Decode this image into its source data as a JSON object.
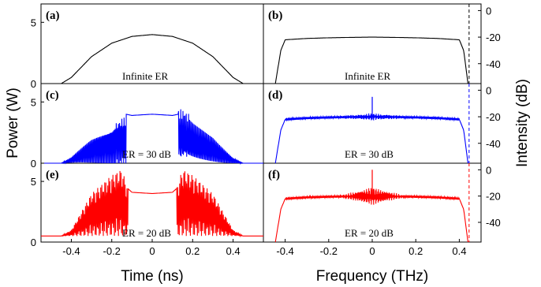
{
  "figure": {
    "xlabel_left": "Time (ns)",
    "xlabel_right": "Frequency (THz)",
    "ylabel_left": "Power (W)",
    "ylabel_right": "Intensity (dB)"
  },
  "colors": {
    "infinite": "#000000",
    "er30": "#0000ff",
    "er20": "#ff0000",
    "marker": "#000000"
  },
  "chart_data": [
    {
      "type": "line",
      "panel": "(a)",
      "annotation": "Infinite ER",
      "xlim": [
        -0.55,
        0.55
      ],
      "ylim": [
        0,
        6.5
      ],
      "x": [
        -0.55,
        -0.45,
        -0.4,
        -0.3,
        -0.2,
        -0.1,
        0,
        0.1,
        0.2,
        0.3,
        0.4,
        0.45,
        0.55
      ],
      "values": [
        0,
        0,
        0.5,
        2.2,
        3.3,
        3.85,
        4.0,
        3.85,
        3.3,
        2.2,
        0.5,
        0,
        0
      ],
      "yticks": [
        0,
        5
      ],
      "xticks": []
    },
    {
      "type": "line",
      "panel": "(b)",
      "annotation": "Infinite ER",
      "xlim": [
        -0.5,
        0.5
      ],
      "ylim": [
        -55,
        5
      ],
      "x": [
        -0.445,
        -0.42,
        -0.4,
        -0.3,
        -0.2,
        -0.1,
        0,
        0.1,
        0.2,
        0.3,
        0.4,
        0.42,
        0.44
      ],
      "values": [
        -55,
        -30,
        -22,
        -21,
        -20.5,
        -20.2,
        -20,
        -20.2,
        -20.5,
        -21,
        -22,
        -30,
        -55
      ],
      "yticks": [
        0,
        -20,
        -40
      ],
      "xticks": []
    },
    {
      "type": "line",
      "panel": "(c)",
      "annotation": "ER = 30 dB",
      "xlim": [
        -0.55,
        0.55
      ],
      "ylim": [
        0,
        6.5
      ],
      "x": [
        -0.55,
        -0.45,
        -0.4,
        -0.3,
        -0.2,
        -0.16,
        -0.13,
        -0.1,
        0,
        0.1,
        0.13,
        0.16,
        0.2,
        0.3,
        0.4,
        0.45,
        0.55
      ],
      "values": [
        0,
        0,
        0.5,
        2.2,
        3.3,
        4.0,
        4.0,
        3.9,
        4.0,
        3.9,
        4.0,
        4.0,
        3.3,
        2.2,
        0.5,
        0,
        0
      ],
      "yticks": [
        0,
        5
      ],
      "xticks": []
    },
    {
      "type": "line",
      "panel": "(d)",
      "annotation": "ER = 30 dB",
      "xlim": [
        -0.5,
        0.5
      ],
      "ylim": [
        -55,
        5
      ],
      "x": [
        -0.445,
        -0.42,
        -0.4,
        -0.3,
        -0.2,
        -0.1,
        0,
        0.1,
        0.2,
        0.3,
        0.4,
        0.42,
        0.44
      ],
      "values": [
        -55,
        -30,
        -22,
        -21,
        -20.5,
        -20.2,
        -20,
        -20.2,
        -20.5,
        -21,
        -22,
        -30,
        -55
      ],
      "yticks": [
        0,
        -20,
        -40
      ],
      "xticks": []
    },
    {
      "type": "line",
      "panel": "(e)",
      "annotation": "ER = 20 dB",
      "xlim": [
        -0.55,
        0.55
      ],
      "ylim": [
        0,
        6.5
      ],
      "x": [
        -0.55,
        -0.45,
        -0.4,
        -0.3,
        -0.2,
        -0.15,
        -0.12,
        -0.1,
        0,
        0.1,
        0.12,
        0.15,
        0.2,
        0.3,
        0.4,
        0.45,
        0.55
      ],
      "values": [
        0.5,
        0.5,
        1.0,
        4.0,
        5.5,
        6.0,
        4.4,
        4.1,
        4.0,
        4.1,
        4.4,
        6.0,
        5.5,
        4.0,
        1.0,
        0.5,
        0.5
      ],
      "yticks": [
        0,
        5
      ],
      "xticks": [
        -0.4,
        -0.2,
        0,
        0.2,
        0.4
      ]
    },
    {
      "type": "line",
      "panel": "(f)",
      "annotation": "ER = 20 dB",
      "xlim": [
        -0.5,
        0.5
      ],
      "ylim": [
        -55,
        5
      ],
      "x": [
        -0.445,
        -0.42,
        -0.4,
        -0.3,
        -0.2,
        -0.1,
        0,
        0.1,
        0.2,
        0.3,
        0.4,
        0.42,
        0.44
      ],
      "values": [
        -55,
        -30,
        -22,
        -21,
        -20.5,
        -20.2,
        -20,
        -20.2,
        -20.5,
        -21,
        -22,
        -30,
        -55
      ],
      "yticks": [
        0,
        -20,
        -40
      ],
      "xticks": [
        -0.4,
        -0.2,
        0,
        0.2,
        0.4
      ]
    }
  ],
  "marker_line": {
    "x": 0.445,
    "styles": [
      "dashed"
    ]
  }
}
